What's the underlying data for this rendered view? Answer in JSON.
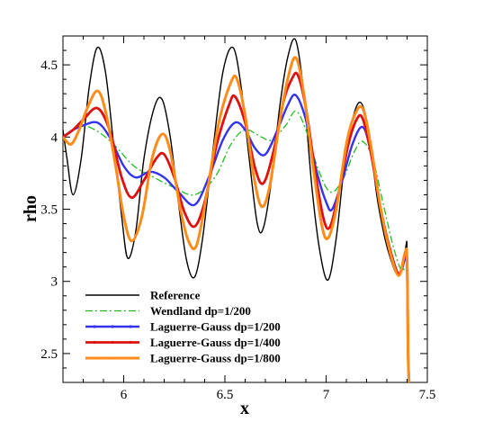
{
  "chart_data": {
    "type": "line",
    "xlabel": "x",
    "ylabel": "rho",
    "xlim": [
      5.7,
      7.5
    ],
    "ylim": [
      2.3,
      4.7
    ],
    "x_ticks": [
      "6",
      "6.5",
      "7",
      "7.5"
    ],
    "y_ticks": [
      "2.5",
      "3",
      "3.5",
      "4",
      "4.5"
    ],
    "grid": false,
    "legend_position": "bottom-left",
    "series": [
      {
        "name": "Reference",
        "color": "#000000",
        "style": "solid",
        "points": [
          [
            5.7,
            4.05
          ],
          [
            5.72,
            3.85
          ],
          [
            5.75,
            3.6
          ],
          [
            5.79,
            3.85
          ],
          [
            5.83,
            4.35
          ],
          [
            5.87,
            4.62
          ],
          [
            5.91,
            4.45
          ],
          [
            5.95,
            3.95
          ],
          [
            5.99,
            3.45
          ],
          [
            6.02,
            3.16
          ],
          [
            6.06,
            3.35
          ],
          [
            6.1,
            3.85
          ],
          [
            6.15,
            4.2
          ],
          [
            6.19,
            4.26
          ],
          [
            6.23,
            4.0
          ],
          [
            6.27,
            3.55
          ],
          [
            6.31,
            3.15
          ],
          [
            6.35,
            3.03
          ],
          [
            6.39,
            3.3
          ],
          [
            6.44,
            3.9
          ],
          [
            6.49,
            4.45
          ],
          [
            6.54,
            4.62
          ],
          [
            6.58,
            4.35
          ],
          [
            6.62,
            3.85
          ],
          [
            6.66,
            3.4
          ],
          [
            6.69,
            3.37
          ],
          [
            6.73,
            3.7
          ],
          [
            6.77,
            4.2
          ],
          [
            6.81,
            4.55
          ],
          [
            6.85,
            4.67
          ],
          [
            6.89,
            4.3
          ],
          [
            6.93,
            3.65
          ],
          [
            6.97,
            3.2
          ],
          [
            7.01,
            3.01
          ],
          [
            7.05,
            3.3
          ],
          [
            7.09,
            3.8
          ],
          [
            7.13,
            4.12
          ],
          [
            7.17,
            4.24
          ],
          [
            7.21,
            4.05
          ],
          [
            7.25,
            3.6
          ],
          [
            7.29,
            3.3
          ],
          [
            7.32,
            3.15
          ],
          [
            7.35,
            3.05
          ],
          [
            7.38,
            3.1
          ],
          [
            7.395,
            3.25
          ],
          [
            7.4,
            3.2
          ],
          [
            7.405,
            2.5
          ],
          [
            7.41,
            2.3
          ]
        ]
      },
      {
        "name": "Wendland dp=1/200",
        "color": "#22bb22",
        "style": "dashdot",
        "points": [
          [
            5.7,
            4.0
          ],
          [
            5.75,
            4.05
          ],
          [
            5.8,
            4.08
          ],
          [
            5.87,
            4.04
          ],
          [
            5.95,
            3.95
          ],
          [
            6.05,
            3.8
          ],
          [
            6.15,
            3.72
          ],
          [
            6.25,
            3.65
          ],
          [
            6.35,
            3.6
          ],
          [
            6.45,
            3.72
          ],
          [
            6.53,
            3.95
          ],
          [
            6.6,
            4.05
          ],
          [
            6.68,
            4.0
          ],
          [
            6.73,
            3.98
          ],
          [
            6.8,
            4.08
          ],
          [
            6.85,
            4.18
          ],
          [
            6.9,
            4.05
          ],
          [
            6.96,
            3.78
          ],
          [
            7.02,
            3.62
          ],
          [
            7.08,
            3.7
          ],
          [
            7.14,
            3.9
          ],
          [
            7.18,
            3.97
          ],
          [
            7.23,
            3.85
          ],
          [
            7.28,
            3.55
          ],
          [
            7.33,
            3.25
          ],
          [
            7.37,
            3.08
          ],
          [
            7.4,
            3.05
          ],
          [
            7.405,
            2.5
          ],
          [
            7.41,
            2.3
          ]
        ]
      },
      {
        "name": "Laguerre-Gauss dp=1/200",
        "color": "#3333ee",
        "style": "solid-marker",
        "points": [
          [
            5.7,
            4.0
          ],
          [
            5.75,
            4.05
          ],
          [
            5.8,
            4.08
          ],
          [
            5.87,
            4.1
          ],
          [
            5.93,
            4.0
          ],
          [
            6.0,
            3.8
          ],
          [
            6.06,
            3.72
          ],
          [
            6.13,
            3.76
          ],
          [
            6.2,
            3.72
          ],
          [
            6.27,
            3.62
          ],
          [
            6.35,
            3.53
          ],
          [
            6.42,
            3.72
          ],
          [
            6.49,
            3.98
          ],
          [
            6.55,
            4.1
          ],
          [
            6.6,
            4.05
          ],
          [
            6.65,
            3.92
          ],
          [
            6.7,
            3.88
          ],
          [
            6.76,
            4.05
          ],
          [
            6.81,
            4.22
          ],
          [
            6.85,
            4.29
          ],
          [
            6.9,
            4.12
          ],
          [
            6.95,
            3.78
          ],
          [
            7.0,
            3.55
          ],
          [
            7.03,
            3.5
          ],
          [
            7.08,
            3.7
          ],
          [
            7.13,
            3.95
          ],
          [
            7.18,
            4.07
          ],
          [
            7.22,
            3.9
          ],
          [
            7.27,
            3.5
          ],
          [
            7.32,
            3.2
          ],
          [
            7.36,
            3.05
          ],
          [
            7.39,
            3.15
          ],
          [
            7.4,
            3.1
          ],
          [
            7.405,
            2.5
          ],
          [
            7.41,
            2.3
          ]
        ]
      },
      {
        "name": "Laguerre-Gauss dp=1/400",
        "color": "#dd1111",
        "style": "solid-marker",
        "points": [
          [
            5.7,
            4.0
          ],
          [
            5.75,
            4.05
          ],
          [
            5.8,
            4.12
          ],
          [
            5.87,
            4.2
          ],
          [
            5.93,
            4.05
          ],
          [
            5.99,
            3.72
          ],
          [
            6.04,
            3.58
          ],
          [
            6.1,
            3.7
          ],
          [
            6.16,
            3.85
          ],
          [
            6.2,
            3.88
          ],
          [
            6.25,
            3.72
          ],
          [
            6.3,
            3.48
          ],
          [
            6.35,
            3.38
          ],
          [
            6.4,
            3.55
          ],
          [
            6.46,
            3.95
          ],
          [
            6.52,
            4.22
          ],
          [
            6.55,
            4.28
          ],
          [
            6.6,
            4.1
          ],
          [
            6.65,
            3.78
          ],
          [
            6.69,
            3.68
          ],
          [
            6.74,
            3.9
          ],
          [
            6.79,
            4.25
          ],
          [
            6.83,
            4.4
          ],
          [
            6.86,
            4.43
          ],
          [
            6.9,
            4.2
          ],
          [
            6.95,
            3.72
          ],
          [
            6.99,
            3.42
          ],
          [
            7.02,
            3.38
          ],
          [
            7.06,
            3.6
          ],
          [
            7.11,
            3.95
          ],
          [
            7.15,
            4.12
          ],
          [
            7.18,
            4.13
          ],
          [
            7.22,
            3.9
          ],
          [
            7.27,
            3.5
          ],
          [
            7.32,
            3.2
          ],
          [
            7.36,
            3.05
          ],
          [
            7.39,
            3.18
          ],
          [
            7.4,
            3.12
          ],
          [
            7.405,
            2.5
          ],
          [
            7.41,
            2.3
          ]
        ]
      },
      {
        "name": "Laguerre-Gauss dp=1/800",
        "color": "#ff8c1a",
        "style": "solid-marker",
        "points": [
          [
            5.7,
            4.0
          ],
          [
            5.74,
            3.95
          ],
          [
            5.78,
            4.05
          ],
          [
            5.82,
            4.2
          ],
          [
            5.87,
            4.32
          ],
          [
            5.91,
            4.18
          ],
          [
            5.96,
            3.8
          ],
          [
            6.0,
            3.45
          ],
          [
            6.04,
            3.28
          ],
          [
            6.09,
            3.45
          ],
          [
            6.14,
            3.85
          ],
          [
            6.19,
            4.02
          ],
          [
            6.23,
            3.9
          ],
          [
            6.28,
            3.5
          ],
          [
            6.32,
            3.28
          ],
          [
            6.36,
            3.25
          ],
          [
            6.41,
            3.6
          ],
          [
            6.47,
            4.1
          ],
          [
            6.53,
            4.38
          ],
          [
            6.56,
            4.4
          ],
          [
            6.6,
            4.15
          ],
          [
            6.64,
            3.75
          ],
          [
            6.68,
            3.52
          ],
          [
            6.72,
            3.65
          ],
          [
            6.77,
            4.1
          ],
          [
            6.81,
            4.4
          ],
          [
            6.85,
            4.55
          ],
          [
            6.89,
            4.3
          ],
          [
            6.94,
            3.75
          ],
          [
            6.98,
            3.38
          ],
          [
            7.01,
            3.3
          ],
          [
            7.05,
            3.5
          ],
          [
            7.1,
            3.95
          ],
          [
            7.14,
            4.15
          ],
          [
            7.18,
            4.2
          ],
          [
            7.22,
            3.95
          ],
          [
            7.27,
            3.5
          ],
          [
            7.32,
            3.18
          ],
          [
            7.36,
            3.04
          ],
          [
            7.39,
            3.2
          ],
          [
            7.4,
            3.15
          ],
          [
            7.405,
            2.5
          ],
          [
            7.41,
            2.3
          ]
        ]
      }
    ]
  }
}
